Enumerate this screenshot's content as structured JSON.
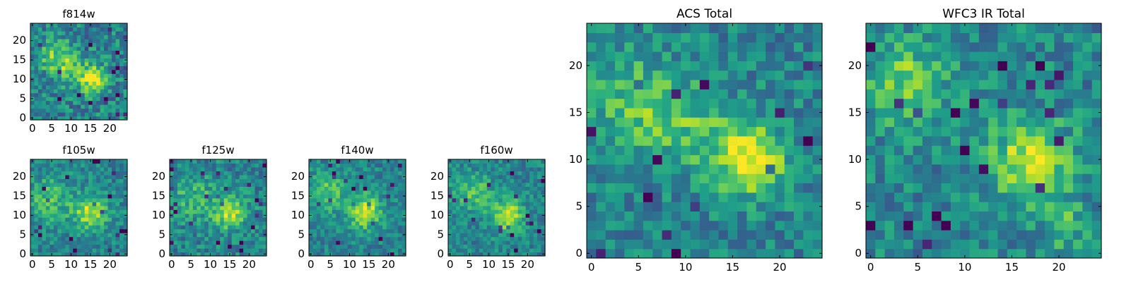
{
  "chart_data": [
    {
      "type": "heatmap",
      "title": "f814w",
      "grid_size": 25,
      "xlim": [
        -0.5,
        24.5
      ],
      "ylim": [
        -0.5,
        24.5
      ],
      "xticks": [
        0,
        5,
        10,
        15,
        20
      ],
      "yticks": [
        0,
        5,
        10,
        15,
        20
      ],
      "colormap": "viridis",
      "features": [
        {
          "x": 16,
          "y": 10,
          "amp": 0.55,
          "sigma": 2.4
        },
        {
          "x": 6,
          "y": 16,
          "amp": 0.28,
          "sigma": 3.0
        },
        {
          "x": 10,
          "y": 13,
          "amp": 0.22,
          "sigma": 3.0
        }
      ],
      "baseline": 0.45,
      "noise": 0.2
    },
    {
      "type": "heatmap",
      "title": "f105w",
      "grid_size": 25,
      "xlim": [
        -0.5,
        24.5
      ],
      "ylim": [
        -0.5,
        24.5
      ],
      "xticks": [
        0,
        5,
        10,
        15,
        20
      ],
      "yticks": [
        0,
        5,
        10,
        15,
        20
      ],
      "colormap": "viridis",
      "features": [
        {
          "x": 15,
          "y": 11,
          "amp": 0.45,
          "sigma": 3.0
        },
        {
          "x": 4,
          "y": 14,
          "amp": 0.25,
          "sigma": 4.0
        }
      ],
      "baseline": 0.45,
      "noise": 0.16
    },
    {
      "type": "heatmap",
      "title": "f125w",
      "grid_size": 25,
      "xlim": [
        -0.5,
        24.5
      ],
      "ylim": [
        -0.5,
        24.5
      ],
      "xticks": [
        0,
        5,
        10,
        15,
        20
      ],
      "yticks": [
        0,
        5,
        10,
        15,
        20
      ],
      "colormap": "viridis",
      "features": [
        {
          "x": 15,
          "y": 11,
          "amp": 0.45,
          "sigma": 3.0
        },
        {
          "x": 5,
          "y": 15,
          "amp": 0.22,
          "sigma": 4.0
        }
      ],
      "baseline": 0.45,
      "noise": 0.18
    },
    {
      "type": "heatmap",
      "title": "f140w",
      "grid_size": 25,
      "xlim": [
        -0.5,
        24.5
      ],
      "ylim": [
        -0.5,
        24.5
      ],
      "xticks": [
        0,
        5,
        10,
        15,
        20
      ],
      "yticks": [
        0,
        5,
        10,
        15,
        20
      ],
      "colormap": "viridis",
      "features": [
        {
          "x": 14,
          "y": 11,
          "amp": 0.5,
          "sigma": 3.0
        },
        {
          "x": 4,
          "y": 16,
          "amp": 0.3,
          "sigma": 3.5
        }
      ],
      "baseline": 0.45,
      "noise": 0.15
    },
    {
      "type": "heatmap",
      "title": "f160w",
      "grid_size": 25,
      "xlim": [
        -0.5,
        24.5
      ],
      "ylim": [
        -0.5,
        24.5
      ],
      "xticks": [
        0,
        5,
        10,
        15,
        20
      ],
      "yticks": [
        0,
        5,
        10,
        15,
        20
      ],
      "colormap": "viridis",
      "features": [
        {
          "x": 15,
          "y": 10,
          "amp": 0.5,
          "sigma": 2.8
        },
        {
          "x": 6,
          "y": 16,
          "amp": 0.28,
          "sigma": 3.5
        }
      ],
      "baseline": 0.45,
      "noise": 0.15
    },
    {
      "type": "heatmap",
      "title": "ACS Total",
      "grid_size": 25,
      "xlim": [
        -0.5,
        24.5
      ],
      "ylim": [
        -0.5,
        24.5
      ],
      "xticks": [
        0,
        5,
        10,
        15,
        20
      ],
      "yticks": [
        0,
        5,
        10,
        15,
        20
      ],
      "colormap": "viridis",
      "features": [
        {
          "x": 17,
          "y": 10,
          "amp": 0.55,
          "sigma": 2.6
        },
        {
          "x": 5,
          "y": 16,
          "amp": 0.28,
          "sigma": 3.5
        },
        {
          "x": 11,
          "y": 13,
          "amp": 0.2,
          "sigma": 3.0
        }
      ],
      "baseline": 0.45,
      "noise": 0.17
    },
    {
      "type": "heatmap",
      "title": "WFC3 IR Total",
      "grid_size": 25,
      "xlim": [
        -0.5,
        24.5
      ],
      "ylim": [
        -0.5,
        24.5
      ],
      "xticks": [
        0,
        5,
        10,
        15,
        20
      ],
      "yticks": [
        0,
        5,
        10,
        15,
        20
      ],
      "colormap": "viridis",
      "features": [
        {
          "x": 17,
          "y": 10,
          "amp": 0.45,
          "sigma": 3.0
        },
        {
          "x": 4,
          "y": 18,
          "amp": 0.35,
          "sigma": 3.0
        },
        {
          "x": 21,
          "y": 3,
          "amp": 0.2,
          "sigma": 2.0
        }
      ],
      "baseline": 0.45,
      "noise": 0.18
    }
  ]
}
